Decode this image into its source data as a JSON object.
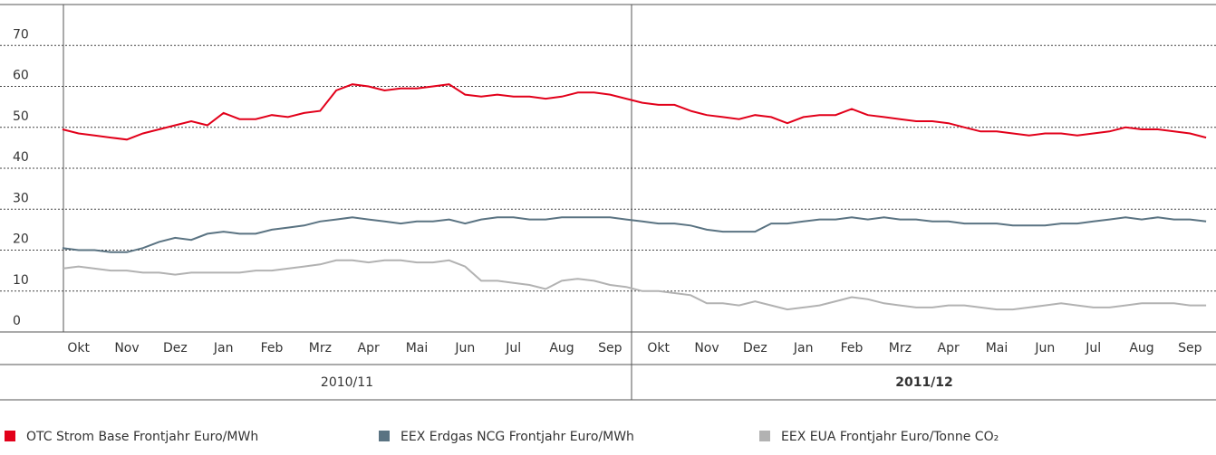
{
  "chart_data": {
    "type": "line",
    "categories": [
      null,
      "Okt",
      null,
      null,
      "Nov",
      null,
      null,
      "Dez",
      null,
      null,
      "Jan",
      null,
      null,
      "Feb",
      null,
      null,
      "Mrz",
      null,
      null,
      "Apr",
      null,
      null,
      "Mai",
      null,
      null,
      "Jun",
      null,
      null,
      "Jul",
      null,
      null,
      "Aug",
      null,
      null,
      "Sep",
      null,
      null,
      "Okt",
      null,
      null,
      "Nov",
      null,
      null,
      "Dez",
      null,
      null,
      "Jan",
      null,
      null,
      "Feb",
      null,
      null,
      "Mrz",
      null,
      null,
      "Apr",
      null,
      null,
      "Mai",
      null,
      null,
      "Jun",
      null,
      null,
      "Jul",
      null,
      null,
      "Aug",
      null,
      null,
      "Sep",
      null
    ],
    "periods": [
      "2010/11",
      "2011/12"
    ],
    "series": [
      {
        "name": "OTC Strom Base Frontjahr Euro/MWh",
        "color": "#e2001a",
        "values": [
          49.5,
          48.5,
          48,
          47.5,
          47,
          48.5,
          49.5,
          50.5,
          51.5,
          50.5,
          53.5,
          52,
          52,
          53,
          52.5,
          53.5,
          54,
          59,
          60.5,
          60,
          59,
          59.5,
          59.5,
          60,
          60.5,
          58,
          57.5,
          58,
          57.5,
          57.5,
          57,
          57.5,
          58.5,
          58.5,
          58,
          57,
          56,
          55.5,
          55.5,
          54,
          53,
          52.5,
          52,
          53,
          52.5,
          51,
          52.5,
          53,
          53,
          54.5,
          53,
          52.5,
          52,
          51.5,
          51.5,
          51,
          50,
          49,
          49,
          48.5,
          48,
          48.5,
          48.5,
          48,
          48.5,
          49,
          50,
          49.5,
          49.5,
          49,
          48.5,
          47.5
        ]
      },
      {
        "name": "EEX Erdgas NCG Frontjahr Euro/MWh",
        "color": "#5a7382",
        "values": [
          20.5,
          20,
          20,
          19.5,
          19.5,
          20.5,
          22,
          23,
          22.5,
          24,
          24.5,
          24,
          24,
          25,
          25.5,
          26,
          27,
          27.5,
          28,
          27.5,
          27,
          26.5,
          27,
          27,
          27.5,
          26.5,
          27.5,
          28,
          28,
          27.5,
          27.5,
          28,
          28,
          28,
          28,
          27.5,
          27,
          26.5,
          26.5,
          26,
          25,
          24.5,
          24.5,
          24.5,
          26.5,
          26.5,
          27,
          27.5,
          27.5,
          28,
          27.5,
          28,
          27.5,
          27.5,
          27,
          27,
          26.5,
          26.5,
          26.5,
          26,
          26,
          26,
          26.5,
          26.5,
          27,
          27.5,
          28,
          27.5,
          28,
          27.5,
          27.5,
          27
        ]
      },
      {
        "name": "EEX EUA Frontjahr Euro/Tonne CO₂",
        "color": "#b2b2b2",
        "values": [
          15.5,
          16,
          15.5,
          15,
          15,
          14.5,
          14.5,
          14,
          14.5,
          14.5,
          14.5,
          14.5,
          15,
          15,
          15.5,
          16,
          16.5,
          17.5,
          17.5,
          17,
          17.5,
          17.5,
          17,
          17,
          17.5,
          16,
          12.5,
          12.5,
          12,
          11.5,
          10.5,
          12.5,
          13,
          12.5,
          11.5,
          11,
          10,
          10,
          9.5,
          9,
          7,
          7,
          6.5,
          7.5,
          6.5,
          5.5,
          6,
          6.5,
          7.5,
          8.5,
          8,
          7,
          6.5,
          6,
          6,
          6.5,
          6.5,
          6,
          5.5,
          5.5,
          6,
          6.5,
          7,
          6.5,
          6,
          6,
          6.5,
          7,
          7,
          7,
          6.5,
          6.5
        ]
      }
    ],
    "ylim": [
      0,
      80
    ],
    "yticks": [
      0,
      10,
      20,
      30,
      40,
      50,
      60,
      70
    ],
    "grid": true
  }
}
